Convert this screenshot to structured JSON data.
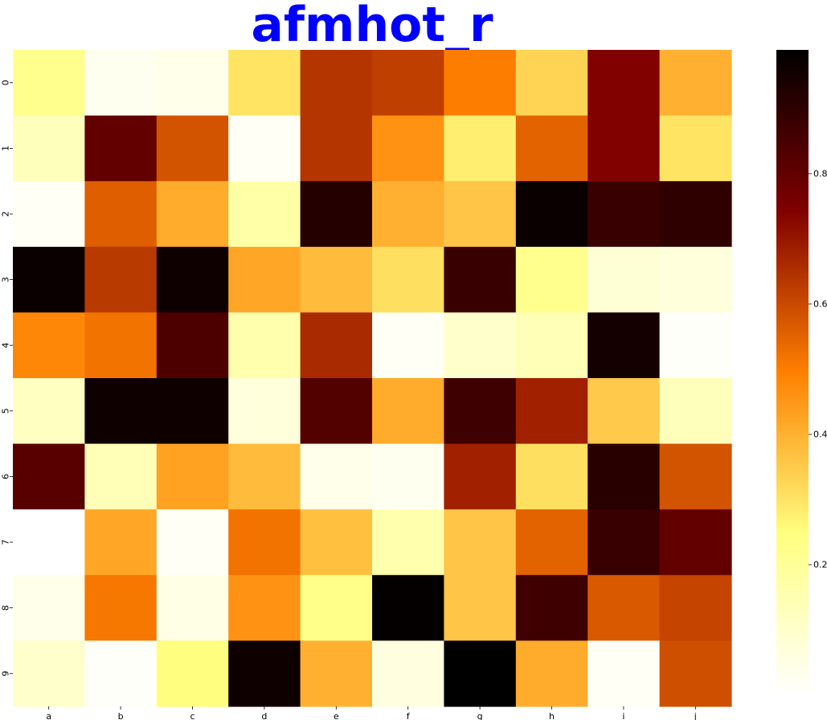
{
  "chart_data": {
    "type": "heatmap",
    "title": "afmhot_r",
    "x_categories": [
      "a",
      "b",
      "c",
      "d",
      "e",
      "f",
      "g",
      "h",
      "i",
      "j"
    ],
    "y_categories": [
      "0",
      "1",
      "2",
      "3",
      "4",
      "5",
      "6",
      "7",
      "8",
      "9"
    ],
    "colormap": "afmhot_r",
    "values": [
      [
        0.22,
        0.03,
        0.04,
        0.3,
        0.64,
        0.62,
        0.5,
        0.33,
        0.74,
        0.4
      ],
      [
        0.13,
        0.8,
        0.58,
        0.02,
        0.64,
        0.46,
        0.28,
        0.55,
        0.74,
        0.3
      ],
      [
        0.02,
        0.56,
        0.41,
        0.17,
        0.92,
        0.4,
        0.36,
        0.97,
        0.88,
        0.9
      ],
      [
        0.97,
        0.63,
        0.96,
        0.42,
        0.38,
        0.31,
        0.88,
        0.22,
        0.08,
        0.07
      ],
      [
        0.48,
        0.52,
        0.84,
        0.16,
        0.66,
        0.02,
        0.1,
        0.14,
        0.95,
        0.01
      ],
      [
        0.12,
        0.96,
        0.96,
        0.07,
        0.83,
        0.41,
        0.87,
        0.68,
        0.35,
        0.13
      ],
      [
        0.82,
        0.14,
        0.43,
        0.38,
        0.04,
        0.03,
        0.68,
        0.31,
        0.91,
        0.58
      ],
      [
        0.0,
        0.42,
        0.02,
        0.52,
        0.37,
        0.16,
        0.36,
        0.55,
        0.88,
        0.8
      ],
      [
        0.04,
        0.51,
        0.05,
        0.46,
        0.23,
        0.98,
        0.36,
        0.87,
        0.57,
        0.61
      ],
      [
        0.1,
        0.01,
        0.25,
        0.96,
        0.4,
        0.06,
        1.0,
        0.41,
        0.02,
        0.59
      ]
    ],
    "vmin": 0.0,
    "vmax": 0.99,
    "colorbar": {
      "ticks": [
        0.2,
        0.4,
        0.6,
        0.8
      ],
      "tick_labels": [
        "0.2",
        "0.4",
        "0.6",
        "0.8"
      ]
    },
    "xlabel": "",
    "ylabel": "",
    "grid": false,
    "legend": "colorbar-right"
  }
}
